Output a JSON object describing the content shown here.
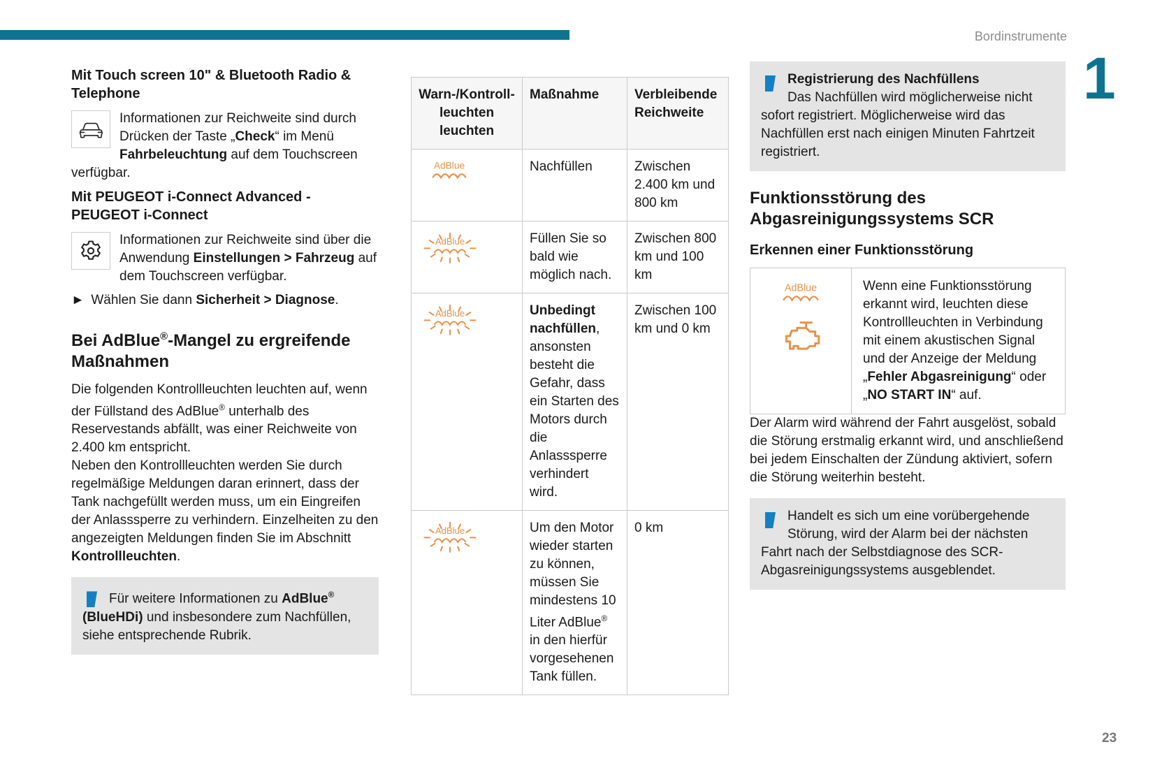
{
  "page": {
    "running_head": "Bordinstrumente",
    "chapter_number": "1",
    "page_number": "23"
  },
  "colors": {
    "accent_teal": "#0e7391",
    "info_blue": "#1480c3",
    "warning_orange": "#e8924b",
    "info_box_gray": "#e4e4e4"
  },
  "icons": {
    "adblue_label": "AdBlue",
    "car": "car-icon",
    "gear": "gear-icon",
    "info": "info-icon",
    "adblue_steady": "adblue-warning-icon",
    "adblue_blinking": "adblue-warning-blinking-icon",
    "engine": "engine-warning-icon"
  },
  "left_column": {
    "heading_touchscreen": "Mit Touch screen 10\" & Bluetooth Radio & Telephone",
    "touchscreen_paragraph": [
      {
        "t": "Informationen zur Reichweite sind durch Drücken der Taste „"
      },
      {
        "t": "Check",
        "b": true
      },
      {
        "t": "“ im Menü "
      },
      {
        "t": "Fahrbeleuchtung",
        "b": true
      },
      {
        "t": " auf dem Touchscreen verfügbar."
      }
    ],
    "heading_iconnect": "Mit PEUGEOT i-Connect Advanced - PEUGEOT i-Connect",
    "iconnect_paragraph": [
      {
        "t": "Informationen zur Reichweite sind über die Anwendung "
      },
      {
        "t": "Einstellungen > Fahrzeug",
        "b": true
      },
      {
        "t": " auf dem Touchscreen verfügbar."
      }
    ],
    "instruction_line": [
      {
        "t": "► "
      },
      {
        "t": "Wählen Sie dann "
      },
      {
        "t": "Sicherheit > Diagnose",
        "b": true
      },
      {
        "t": "."
      }
    ],
    "heading_adblue_shortage": [
      {
        "t": "Bei AdBlue"
      },
      {
        "t": "®",
        "s": true
      },
      {
        "t": "-Mangel zu ergreifende Maßnahmen"
      }
    ],
    "para_warning_lamps": [
      {
        "t": "Die folgenden Kontrollleuchten leuchten auf, wenn der Füllstand des AdBlue"
      },
      {
        "t": "®",
        "s": true
      },
      {
        "t": " unterhalb des Reservestands abfällt, was einer Reichweite von 2.400 km entspricht."
      }
    ],
    "para_reminders": [
      {
        "t": "Neben den Kontrollleuchten werden Sie durch regelmäßige Meldungen daran erinnert, dass der Tank nachgefüllt werden muss, um ein Eingreifen der Anlasssperre zu verhindern. Einzelheiten zu den angezeigten Meldungen finden Sie im Abschnitt "
      },
      {
        "t": "Kontrollleuchten",
        "b": true
      },
      {
        "t": "."
      }
    ],
    "info_box_adblue": [
      {
        "t": "Für weitere Informationen zu "
      },
      {
        "t": "AdBlue",
        "b": true
      },
      {
        "t": "®",
        "b": true,
        "s": true
      },
      {
        "t": " (BlueHDi)",
        "b": true
      },
      {
        "t": " und insbesondere zum Nachfüllen, siehe entsprechende Rubrik."
      }
    ]
  },
  "table": {
    "headers": {
      "col1": "Warn-/Kontroll-\nleuchten\nleuchten",
      "col2": "Maßnahme",
      "col3": "Verbleibende Reichweite"
    },
    "rows": [
      {
        "icon": "adblue-warning-icon",
        "massnahme": [
          {
            "t": "Nachfüllen"
          }
        ],
        "reichweite": "Zwischen 2.400 km und 800 km"
      },
      {
        "icon": "adblue-warning-blinking-icon",
        "massnahme": [
          {
            "t": "Füllen Sie so bald wie möglich nach."
          }
        ],
        "reichweite": "Zwischen 800 km und 100 km"
      },
      {
        "icon": "adblue-warning-blinking-icon",
        "massnahme": [
          {
            "t": "Unbedingt nachfüllen",
            "b": true
          },
          {
            "t": ", ansonsten besteht die Gefahr, dass ein Starten des Motors durch die Anlasssperre verhindert wird."
          }
        ],
        "reichweite": "Zwischen 100 km und 0 km"
      },
      {
        "icon": "adblue-warning-blinking-icon",
        "massnahme": [
          {
            "t": "Um den Motor wieder starten zu können, müssen Sie mindestens 10 Liter AdBlue"
          },
          {
            "t": "®",
            "s": true
          },
          {
            "t": " in den hierfür vorgesehenen Tank füllen."
          }
        ],
        "reichweite": "0 km"
      }
    ]
  },
  "right_column": {
    "info_box_refill": {
      "title": "Registrierung des Nachfüllens",
      "body": "Das Nachfüllen wird möglicherweise nicht sofort registriert. Möglicherweise wird das Nachfüllen erst nach einigen Minuten Fahrtzeit registriert."
    },
    "heading_scr": "Funktionsstörung des Abgasreinigungssystems SCR",
    "subheading_detection": "Erkennen einer Funktionsstörung",
    "warning_box_text": [
      {
        "t": "Wenn eine Funktionsstörung erkannt wird, leuchten diese Kontrollleuchten in Verbindung mit einem akustischen Signal und der Anzeige der Meldung „"
      },
      {
        "t": "Fehler Abgasreinigung",
        "b": true
      },
      {
        "t": "“ oder „"
      },
      {
        "t": "NO START IN",
        "b": true
      },
      {
        "t": "“ auf."
      }
    ],
    "para_alarm": "Der Alarm wird während der Fahrt ausgelöst, sobald die Störung erstmalig erkannt wird, und anschließend bei jedem Einschalten der Zündung aktiviert, sofern die Störung weiterhin besteht.",
    "info_box_transient": "Handelt es sich um eine vorübergehende Störung, wird der Alarm bei der nächsten Fahrt nach der Selbstdiagnose des SCR-Abgasreinigungssystems ausgeblendet."
  }
}
